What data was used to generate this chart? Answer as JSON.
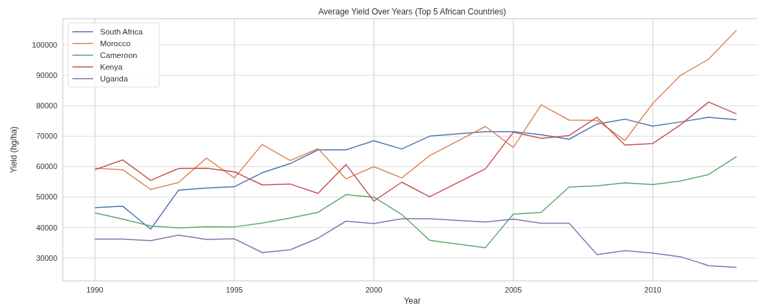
{
  "chart_data": {
    "type": "line",
    "title": "Average Yield Over Years (Top 5 African Countries)",
    "xlabel": "Year",
    "ylabel": "Yield (hg/ha)",
    "x": [
      1990,
      1991,
      1992,
      1993,
      1994,
      1995,
      1996,
      1997,
      1998,
      1999,
      2000,
      2001,
      2002,
      2004,
      2005,
      2006,
      2007,
      2008,
      2009,
      2010,
      2011,
      2012,
      2013
    ],
    "xlim": [
      1988.85,
      2013.9
    ],
    "xticks": [
      1990,
      1995,
      2000,
      2005,
      2010
    ],
    "ylim": [
      22500,
      108600
    ],
    "yticks": [
      30000,
      40000,
      50000,
      60000,
      70000,
      80000,
      90000,
      100000
    ],
    "grid": true,
    "legend": "top left",
    "line_style": "solid",
    "series": [
      {
        "name": "South Africa",
        "color": "#4c72b0",
        "values": [
          46500,
          47000,
          39500,
          52300,
          53000,
          53400,
          58000,
          61000,
          65500,
          65500,
          68500,
          65800,
          70000,
          71500,
          71500,
          70500,
          69000,
          74000,
          75600,
          73300,
          74700,
          76200,
          75400
        ]
      },
      {
        "name": "Morocco",
        "color": "#dd8452",
        "values": [
          59500,
          59000,
          52500,
          54800,
          62800,
          56300,
          67300,
          62000,
          65900,
          56000,
          60000,
          56300,
          63600,
          73200,
          66300,
          80300,
          75300,
          75200,
          68600,
          80800,
          90000,
          95300,
          104800
        ]
      },
      {
        "name": "Cameroon",
        "color": "#55a868",
        "values": [
          44800,
          42800,
          40500,
          39900,
          40300,
          40200,
          41500,
          43100,
          45000,
          50800,
          50000,
          44300,
          35800,
          33400,
          44400,
          45000,
          53300,
          53700,
          54700,
          54100,
          55300,
          57400,
          63300
        ]
      },
      {
        "name": "Kenya",
        "color": "#c44e52",
        "values": [
          59000,
          62200,
          55500,
          59400,
          59500,
          58300,
          54000,
          54300,
          51200,
          60700,
          48700,
          54900,
          50100,
          59300,
          71300,
          69300,
          70200,
          76200,
          67100,
          67600,
          73800,
          81200,
          77300
        ]
      },
      {
        "name": "Uganda",
        "color": "#8172b3",
        "values": [
          36200,
          36200,
          35700,
          37500,
          36100,
          36300,
          31800,
          32700,
          36500,
          42100,
          41300,
          42900,
          42900,
          41800,
          42800,
          41400,
          41400,
          31100,
          32400,
          31600,
          30400,
          27500,
          26900
        ]
      }
    ]
  }
}
